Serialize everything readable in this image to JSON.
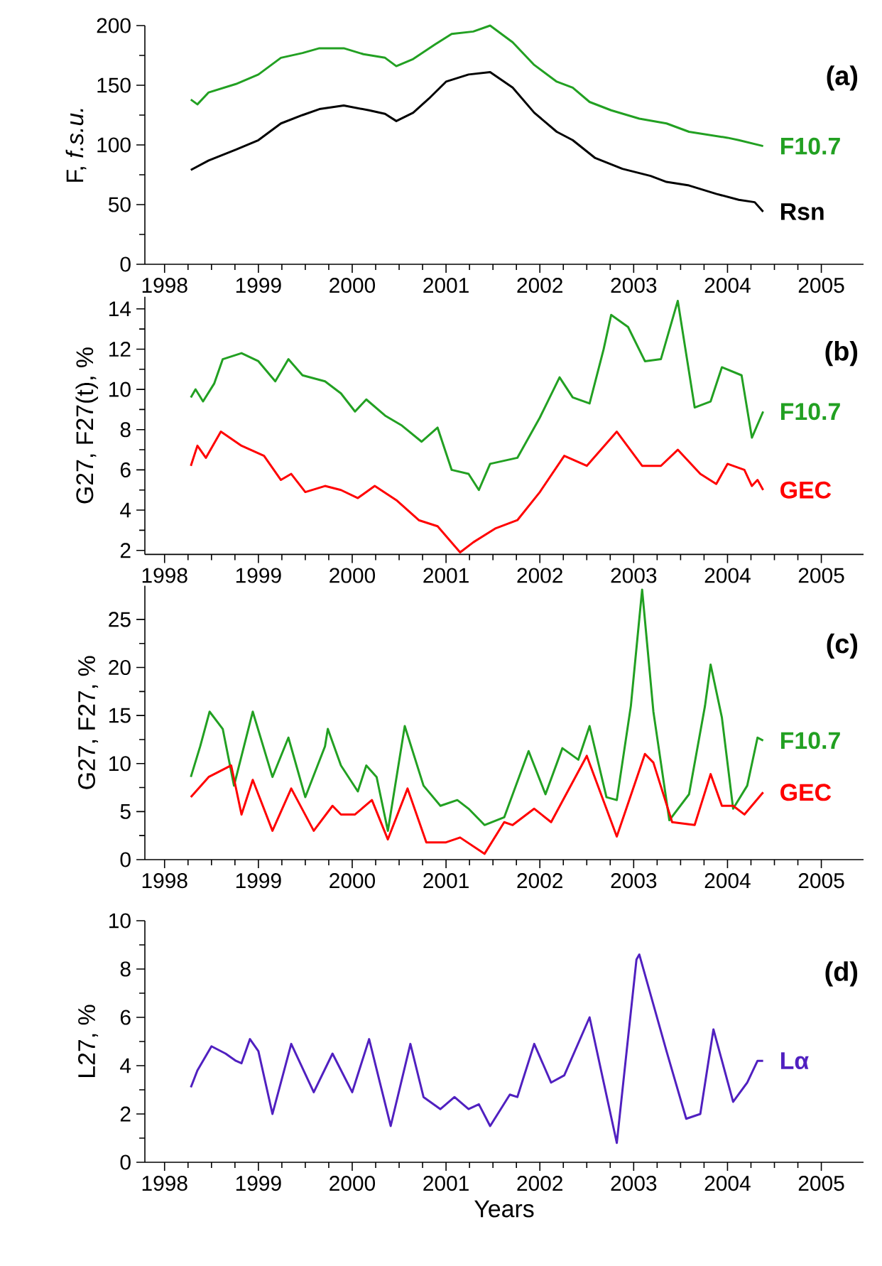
{
  "chart_data": [
    {
      "type": "line",
      "ylabel": "F,  *f.s.u.*",
      "annotations": [
        "(a)"
      ],
      "xlim": [
        1997.79,
        2005.45
      ],
      "xticks": [
        1998,
        1999,
        2000,
        2001,
        2002,
        2003,
        2004,
        2005
      ],
      "ylim": [
        0,
        200
      ],
      "yticks": [
        0,
        50,
        100,
        150,
        200
      ],
      "marker": "none",
      "series": [
        {
          "name": "F10.7",
          "color": "#22a022",
          "x": [
            1998.28,
            1998.35,
            1998.47,
            1998.76,
            1999.0,
            1999.24,
            1999.47,
            1999.65,
            1999.91,
            2000.12,
            2000.35,
            2000.47,
            2000.65,
            2000.88,
            2001.06,
            2001.29,
            2001.47,
            2001.71,
            2001.94,
            2002.18,
            2002.35,
            2002.53,
            2002.76,
            2003.06,
            2003.35,
            2003.59,
            2004.0,
            2004.12,
            2004.38
          ],
          "values": [
            138,
            134,
            144,
            151,
            159,
            173,
            177,
            181,
            181,
            176,
            173,
            166,
            172,
            184,
            193,
            195,
            200,
            186,
            167,
            153,
            148,
            136,
            129,
            122,
            118,
            111,
            106,
            104,
            99
          ]
        },
        {
          "name": "Rsn",
          "color": "#000000",
          "x": [
            1998.28,
            1998.47,
            1998.76,
            1999.0,
            1999.24,
            1999.47,
            1999.65,
            1999.91,
            2000.18,
            2000.35,
            2000.47,
            2000.65,
            2000.82,
            2001.0,
            2001.24,
            2001.47,
            2001.71,
            2001.94,
            2002.18,
            2002.35,
            2002.59,
            2002.88,
            2003.18,
            2003.35,
            2003.59,
            2003.88,
            2004.12,
            2004.29,
            2004.38
          ],
          "values": [
            79,
            87,
            96,
            104,
            118,
            125,
            130,
            133,
            129,
            126,
            120,
            127,
            139,
            153,
            159,
            161,
            148,
            127,
            111,
            104,
            89,
            80,
            74,
            69,
            66,
            59,
            54,
            52,
            44
          ]
        }
      ]
    },
    {
      "type": "line",
      "ylabel": "G27, F27(t), %",
      "annotations": [
        "(b)"
      ],
      "xlim": [
        1997.79,
        2005.45
      ],
      "xticks": [
        1998,
        1999,
        2000,
        2001,
        2002,
        2003,
        2004,
        2005
      ],
      "ylim": [
        1.8,
        14.6
      ],
      "yticks": [
        2,
        4,
        6,
        8,
        10,
        12,
        14
      ],
      "marker": "none",
      "series": [
        {
          "name": "F10.7",
          "color": "#22a022",
          "x": [
            1998.28,
            1998.33,
            1998.41,
            1998.53,
            1998.62,
            1998.82,
            1999.0,
            1999.18,
            1999.32,
            1999.47,
            1999.71,
            1999.88,
            2000.03,
            2000.15,
            2000.35,
            2000.53,
            2000.74,
            2000.91,
            2001.06,
            2001.24,
            2001.35,
            2001.47,
            2001.76,
            2002.0,
            2002.21,
            2002.35,
            2002.53,
            2002.68,
            2002.76,
            2002.94,
            2003.12,
            2003.29,
            2003.47,
            2003.65,
            2003.82,
            2003.94,
            2004.15,
            2004.26,
            2004.38
          ],
          "values": [
            9.6,
            10.0,
            9.4,
            10.3,
            11.5,
            11.8,
            11.4,
            10.4,
            11.5,
            10.7,
            10.4,
            9.8,
            8.9,
            9.5,
            8.7,
            8.2,
            7.4,
            8.1,
            6.0,
            5.8,
            5.0,
            6.3,
            6.6,
            8.6,
            10.6,
            9.6,
            9.3,
            12.0,
            13.7,
            13.1,
            11.4,
            11.5,
            14.4,
            9.1,
            9.4,
            11.1,
            10.7,
            7.6,
            8.9
          ]
        },
        {
          "name": "GEC",
          "color": "#ff0000",
          "x": [
            1998.28,
            1998.35,
            1998.44,
            1998.6,
            1998.82,
            1999.06,
            1999.24,
            1999.35,
            1999.5,
            1999.71,
            1999.88,
            2000.06,
            2000.24,
            2000.47,
            2000.71,
            2000.91,
            2001.15,
            2001.29,
            2001.53,
            2001.76,
            2002.0,
            2002.26,
            2002.5,
            2002.82,
            2003.09,
            2003.29,
            2003.47,
            2003.71,
            2003.88,
            2004.0,
            2004.18,
            2004.26,
            2004.32,
            2004.38
          ],
          "values": [
            6.2,
            7.2,
            6.6,
            7.9,
            7.2,
            6.7,
            5.5,
            5.8,
            4.9,
            5.2,
            5.0,
            4.6,
            5.2,
            4.5,
            3.5,
            3.2,
            1.9,
            2.4,
            3.1,
            3.5,
            4.9,
            6.7,
            6.2,
            7.9,
            6.2,
            6.2,
            7.0,
            5.8,
            5.3,
            6.3,
            6.0,
            5.2,
            5.5,
            5.0
          ]
        }
      ]
    },
    {
      "type": "line",
      "ylabel": "G27, F27, %",
      "annotations": [
        "(c)"
      ],
      "xlim": [
        1997.79,
        2005.45
      ],
      "xticks": [
        1998,
        1999,
        2000,
        2001,
        2002,
        2003,
        2004,
        2005
      ],
      "ylim": [
        0,
        28.5
      ],
      "yticks": [
        0,
        5,
        10,
        15,
        20,
        25
      ],
      "marker": "none",
      "series": [
        {
          "name": "F10.7",
          "color": "#22a022",
          "x": [
            1998.28,
            1998.38,
            1998.48,
            1998.62,
            1998.74,
            1998.94,
            1999.15,
            1999.32,
            1999.5,
            1999.71,
            1999.74,
            1999.88,
            2000.06,
            2000.15,
            2000.26,
            2000.38,
            2000.56,
            2000.76,
            2000.94,
            2001.12,
            2001.24,
            2001.41,
            2001.62,
            2001.88,
            2002.06,
            2002.24,
            2002.41,
            2002.53,
            2002.71,
            2002.82,
            2002.97,
            2003.09,
            2003.21,
            2003.38,
            2003.59,
            2003.76,
            2003.82,
            2003.94,
            2004.06,
            2004.21,
            2004.32,
            2004.38
          ],
          "values": [
            8.6,
            11.8,
            15.4,
            13.6,
            7.7,
            15.4,
            8.6,
            12.7,
            6.5,
            11.8,
            13.6,
            9.8,
            7.1,
            9.8,
            8.6,
            3.0,
            13.9,
            7.7,
            5.6,
            6.2,
            5.3,
            3.6,
            4.4,
            11.3,
            6.8,
            11.6,
            10.4,
            13.9,
            6.5,
            6.2,
            16.0,
            28.1,
            15.4,
            4.1,
            6.8,
            16.0,
            20.3,
            14.8,
            5.3,
            7.7,
            12.7,
            12.4
          ]
        },
        {
          "name": "GEC",
          "color": "#ff0000",
          "x": [
            1998.28,
            1998.47,
            1998.71,
            1998.82,
            1998.94,
            1999.15,
            1999.35,
            1999.59,
            1999.79,
            1999.88,
            2000.03,
            2000.21,
            2000.38,
            2000.59,
            2000.79,
            2001.0,
            2001.15,
            2001.41,
            2001.62,
            2001.71,
            2001.94,
            2002.12,
            2002.5,
            2002.82,
            2003.12,
            2003.21,
            2003.41,
            2003.65,
            2003.82,
            2003.94,
            2004.06,
            2004.18,
            2004.38
          ],
          "values": [
            6.5,
            8.6,
            9.8,
            4.7,
            8.3,
            3.0,
            7.4,
            3.0,
            5.6,
            4.7,
            4.7,
            6.2,
            2.1,
            7.4,
            1.8,
            1.8,
            2.3,
            0.6,
            3.9,
            3.6,
            5.3,
            3.9,
            10.8,
            2.4,
            11.0,
            10.1,
            3.9,
            3.6,
            8.9,
            5.6,
            5.6,
            4.7,
            7.0
          ]
        }
      ]
    },
    {
      "type": "line",
      "ylabel": "L27, %",
      "xlabel": "Years",
      "annotations": [
        "(d)"
      ],
      "xlim": [
        1997.79,
        2005.45
      ],
      "xticks": [
        1998,
        1999,
        2000,
        2001,
        2002,
        2003,
        2004,
        2005
      ],
      "ylim": [
        0,
        10
      ],
      "yticks": [
        0,
        2,
        4,
        6,
        8,
        10
      ],
      "marker": "none",
      "series": [
        {
          "name": "Lα",
          "color": "#5020c0",
          "x": [
            1998.28,
            1998.35,
            1998.5,
            1998.65,
            1998.76,
            1998.82,
            1998.91,
            1999.0,
            1999.15,
            1999.35,
            1999.59,
            1999.79,
            2000.0,
            2000.18,
            2000.41,
            2000.62,
            2000.76,
            2000.94,
            2001.09,
            2001.24,
            2001.35,
            2001.47,
            2001.68,
            2001.76,
            2001.94,
            2002.12,
            2002.26,
            2002.53,
            2002.82,
            2003.03,
            2003.06,
            2003.35,
            2003.56,
            2003.71,
            2003.85,
            2004.06,
            2004.21,
            2004.32,
            2004.38
          ],
          "values": [
            3.1,
            3.8,
            4.8,
            4.5,
            4.2,
            4.1,
            5.1,
            4.6,
            2.0,
            4.9,
            2.9,
            4.5,
            2.9,
            5.1,
            1.5,
            4.9,
            2.7,
            2.2,
            2.7,
            2.2,
            2.4,
            1.5,
            2.8,
            2.7,
            4.9,
            3.3,
            3.6,
            6.0,
            0.8,
            8.4,
            8.6,
            4.6,
            1.8,
            2.0,
            5.5,
            2.5,
            3.3,
            4.2,
            4.2
          ]
        }
      ]
    }
  ]
}
